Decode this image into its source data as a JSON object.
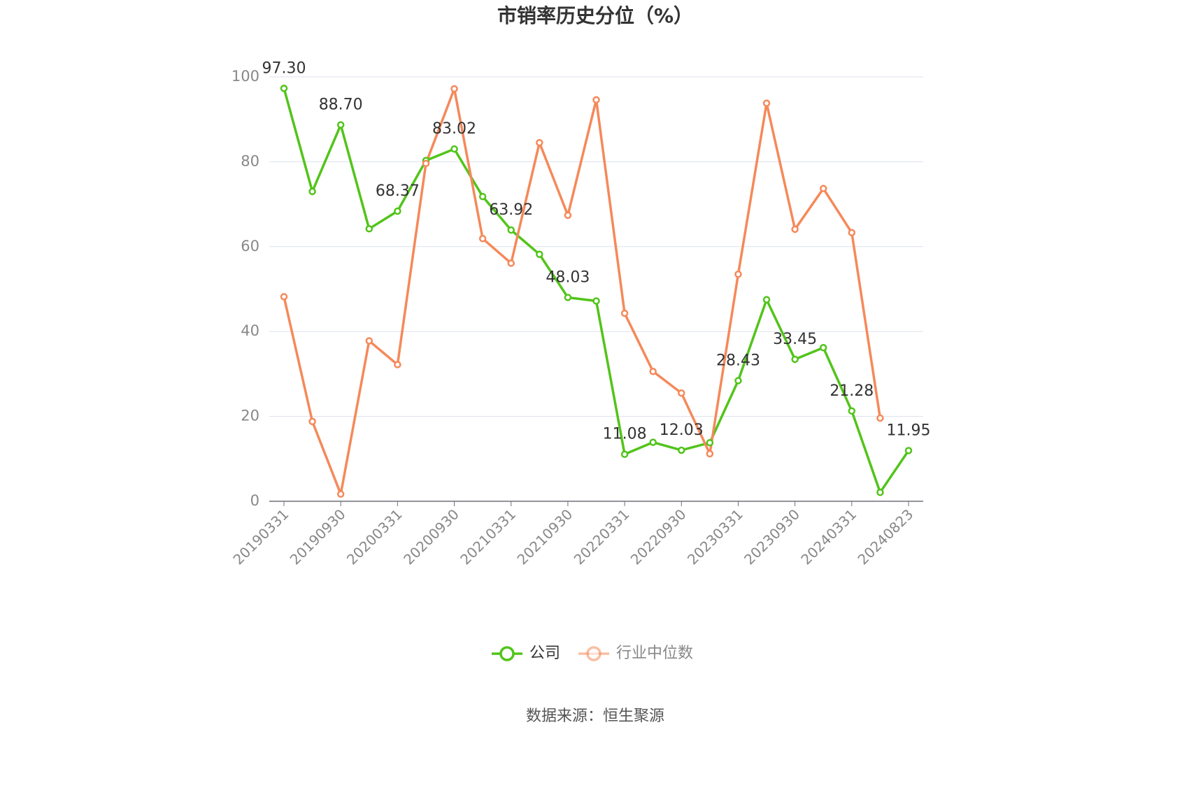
{
  "chart_data": {
    "type": "line",
    "title": "市销率历史分位（%）",
    "categories": [
      "20190331",
      null,
      "20190930",
      null,
      "20200331",
      null,
      "20200930",
      null,
      "20210331",
      null,
      "20210930",
      null,
      "20220331",
      null,
      "20220930",
      null,
      "20230331",
      null,
      "20230930",
      null,
      "20240331",
      null,
      "20240823"
    ],
    "series": [
      {
        "name": "公司",
        "color": "#52c41a",
        "values": [
          97.3,
          73,
          88.7,
          64.2,
          68.37,
          80.3,
          83.02,
          71.8,
          63.92,
          58.2,
          48.03,
          47.2,
          11.08,
          13.9,
          12.03,
          13.8,
          28.43,
          47.5,
          33.45,
          36.2,
          21.28,
          2.1,
          11.95
        ],
        "value_labels": [
          "97.30",
          null,
          "88.70",
          null,
          "68.37",
          null,
          "83.02",
          null,
          "63.92",
          null,
          "48.03",
          null,
          "11.08",
          null,
          "12.03",
          null,
          "28.43",
          null,
          "33.45",
          null,
          "21.28",
          null,
          "11.95"
        ]
      },
      {
        "name": "行业中位数",
        "color": "#f5895a",
        "values": [
          48.2,
          18.8,
          1.7,
          37.8,
          32.2,
          79.6,
          97.2,
          61.9,
          56.1,
          84.5,
          67.4,
          94.6,
          44.3,
          30.6,
          25.5,
          11.2,
          53.5,
          93.8,
          64.1,
          73.7,
          63.3,
          19.6,
          null
        ]
      }
    ],
    "ylim": [
      0,
      100
    ],
    "yticks": [
      0,
      20,
      40,
      60,
      80,
      100
    ],
    "grid": true,
    "legend": "bottom",
    "source": "数据来源：恒生聚源"
  }
}
